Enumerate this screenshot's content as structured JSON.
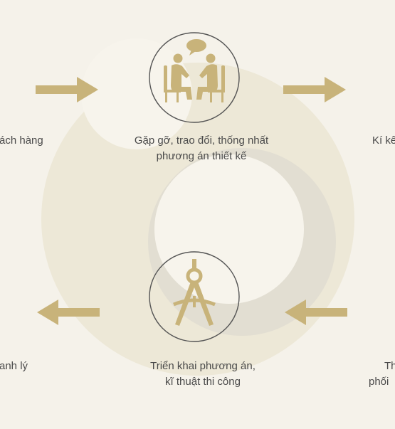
{
  "colors": {
    "background": "#f5f2ea",
    "gold": "#c8b37a",
    "big_circle": "#ede8d7",
    "light_circle": "#f7f4ec",
    "shadow_circle": "#e2ded2",
    "text": "#4a4a4a"
  },
  "steps": [
    {
      "id": "meeting",
      "lines": [
        "Gặp gỡ, trao đổi, thống nhất",
        "phương án thiết kế"
      ],
      "icon": "meeting-people-icon"
    },
    {
      "id": "contract",
      "lines": [
        "Kí kế"
      ],
      "icon": ""
    },
    {
      "id": "construction",
      "lines": [
        "Th",
        "phối"
      ],
      "icon": ""
    },
    {
      "id": "implement",
      "lines": [
        "Triển khai phương án,",
        "kĩ thuật thi công"
      ],
      "icon": "compass-icon"
    },
    {
      "id": "liquidation",
      "lines": [
        "anh lý"
      ],
      "icon": ""
    },
    {
      "id": "customer",
      "lines": [
        "ách hàng"
      ],
      "icon": ""
    }
  ],
  "arrows": [
    {
      "id": "top-left",
      "direction": "right"
    },
    {
      "id": "top-right",
      "direction": "right"
    },
    {
      "id": "bottom-left",
      "direction": "left"
    },
    {
      "id": "bottom-right",
      "direction": "left"
    }
  ]
}
